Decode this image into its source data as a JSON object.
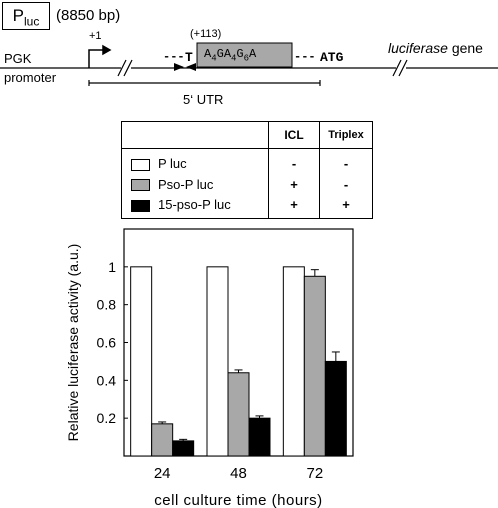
{
  "diagram": {
    "plasmid_name": "P",
    "plasmid_sub": "luc",
    "plasmid_size": "(8850 bp)",
    "tss": "+1",
    "site_position": "(+113)",
    "dashes_left": "---",
    "t_letter": "T",
    "site_seq": "A4GA4G6A",
    "dashes_right": "---",
    "atg": "ATG",
    "promoter_1": "PGK",
    "promoter_2": "promoter",
    "gene_italic": "luciferase",
    "gene_word": "gene",
    "utr": "5‘ UTR"
  },
  "legend": {
    "col_icl": "ICL",
    "col_triplex": "Triplex",
    "rows": [
      {
        "label": "P luc",
        "icl": "-",
        "triplex": "-",
        "color": "#ffffff"
      },
      {
        "label": "Pso-P luc",
        "icl": "+",
        "triplex": "-",
        "color": "#a8a8a8"
      },
      {
        "label": "15-pso-P luc",
        "icl": "+",
        "triplex": "+",
        "color": "#000000"
      }
    ]
  },
  "chart_data": {
    "type": "bar",
    "categories": [
      "24",
      "48",
      "72"
    ],
    "series": [
      {
        "name": "P luc",
        "color": "#ffffff",
        "values": [
          1,
          1,
          1
        ],
        "errors": [
          0,
          0,
          0
        ]
      },
      {
        "name": "Pso-P luc",
        "color": "#a8a8a8",
        "values": [
          0.17,
          0.44,
          0.95
        ],
        "errors": [
          0.01,
          0.015,
          0.035
        ]
      },
      {
        "name": "15-pso-P luc",
        "color": "#000000",
        "values": [
          0.08,
          0.2,
          0.5
        ],
        "errors": [
          0.008,
          0.012,
          0.05
        ]
      }
    ],
    "xlabel": "cell culture time (hours)",
    "ylabel": "Relative luciferase activity (a.u.)",
    "yticks": [
      "0.2",
      "0.4",
      "0.6",
      "0.8",
      "1"
    ],
    "ylim": [
      0,
      1.2
    ]
  }
}
